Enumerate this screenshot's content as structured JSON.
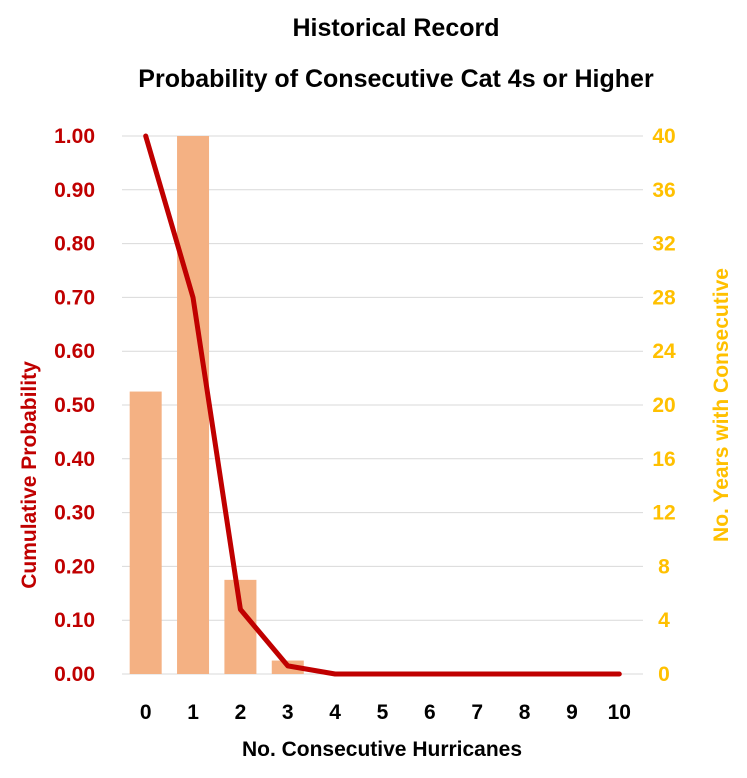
{
  "chart_data": {
    "type": "bar",
    "title": "Historical Record",
    "subtitle": "Probability of Consecutive Cat 4s or Higher",
    "xlabel": "No. Consecutive Hurricanes",
    "ylabel_left": "Cumulative Probability",
    "ylabel_right": "No. Years with Consecutive",
    "categories": [
      "0",
      "1",
      "2",
      "3",
      "4",
      "5",
      "6",
      "7",
      "8",
      "9",
      "10"
    ],
    "ylim_left": [
      0,
      1.0
    ],
    "ylim_right": [
      0,
      40
    ],
    "yticks_left": [
      "0.00",
      "0.10",
      "0.20",
      "0.30",
      "0.40",
      "0.50",
      "0.60",
      "0.70",
      "0.80",
      "0.90",
      "1.00"
    ],
    "yticks_right": [
      "0",
      "4",
      "8",
      "12",
      "16",
      "20",
      "24",
      "28",
      "32",
      "36",
      "40"
    ],
    "grid": true,
    "series": [
      {
        "type": "bar",
        "axis": "right",
        "values": [
          21,
          40,
          7,
          1,
          0,
          0,
          0,
          0,
          0,
          0,
          0
        ],
        "color": "#F4B183"
      },
      {
        "type": "line",
        "axis": "left",
        "values": [
          1.0,
          0.7,
          0.12,
          0.015,
          0.0,
          0.0,
          0.0,
          0.0,
          0.0,
          0.0,
          0.0
        ],
        "color": "#C00000"
      }
    ],
    "colors": {
      "left_axis": "#C00000",
      "right_axis": "#FFC000",
      "grid": "#D9D9D9"
    }
  }
}
